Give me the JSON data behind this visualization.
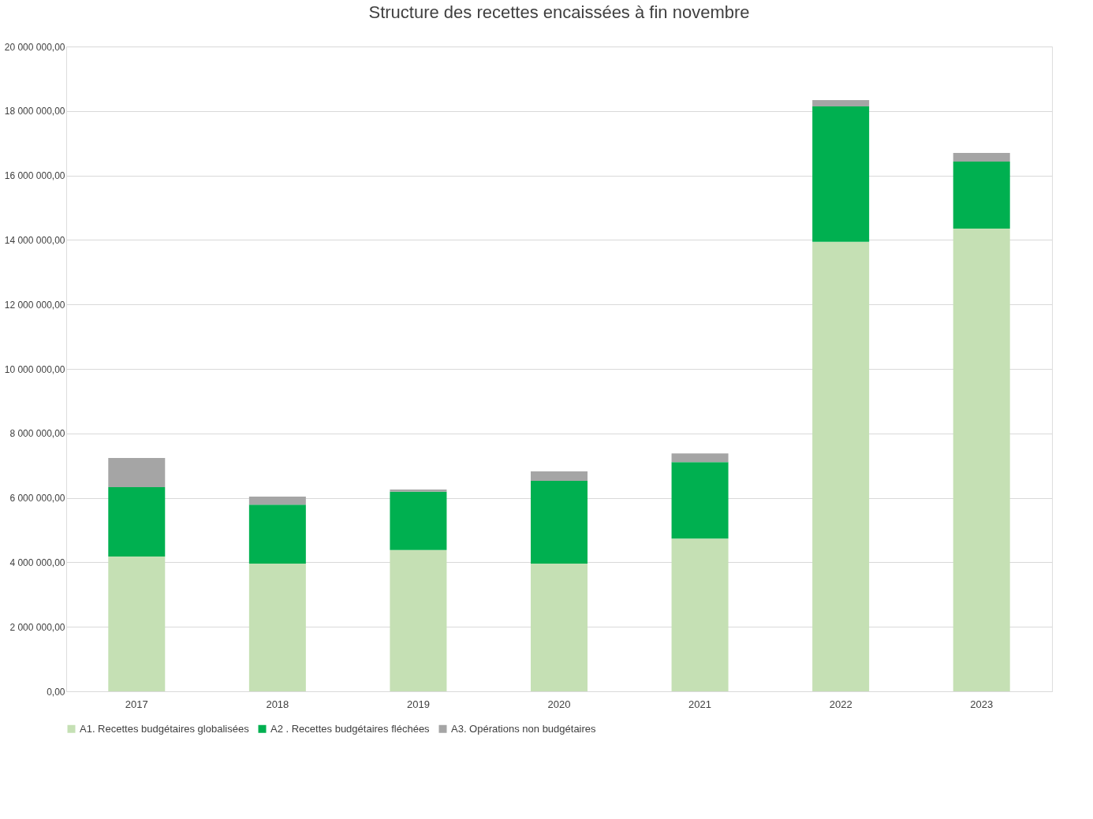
{
  "chart_data": {
    "type": "bar",
    "title": "Structure des recettes encaissées à fin novembre",
    "stacked": true,
    "grid": "y",
    "legend": "bottom",
    "categories": [
      "2017",
      "2018",
      "2019",
      "2020",
      "2021",
      "2022",
      "2023"
    ],
    "series": [
      {
        "name": "A1. Recettes budgétaires globalisées",
        "color": "#c5e0b4",
        "values": [
          4180000,
          3960000,
          4380000,
          3960000,
          4740000,
          13940000,
          14350000
        ]
      },
      {
        "name": "A2 . Recettes budgétaires fléchées",
        "color": "#00b050",
        "values": [
          2150000,
          1830000,
          1810000,
          2570000,
          2370000,
          4200000,
          2080000
        ]
      },
      {
        "name": "A3. Opérations non budgétaires",
        "color": "#a5a5a5",
        "values": [
          910000,
          250000,
          70000,
          290000,
          270000,
          200000,
          270000
        ]
      }
    ],
    "ylim": [
      0,
      20000000
    ],
    "yticks": [
      {
        "value": 0,
        "label": "0,00"
      },
      {
        "value": 2000000,
        "label": "2 000 000,00"
      },
      {
        "value": 4000000,
        "label": "4 000 000,00"
      },
      {
        "value": 6000000,
        "label": "6 000 000,00"
      },
      {
        "value": 8000000,
        "label": "8 000 000,00"
      },
      {
        "value": 10000000,
        "label": "10 000 000,00"
      },
      {
        "value": 12000000,
        "label": "12 000 000,00"
      },
      {
        "value": 14000000,
        "label": "14 000 000,00"
      },
      {
        "value": 16000000,
        "label": "16 000 000,00"
      },
      {
        "value": 18000000,
        "label": "18 000 000,00"
      },
      {
        "value": 20000000,
        "label": "20 000 000,00"
      }
    ]
  }
}
